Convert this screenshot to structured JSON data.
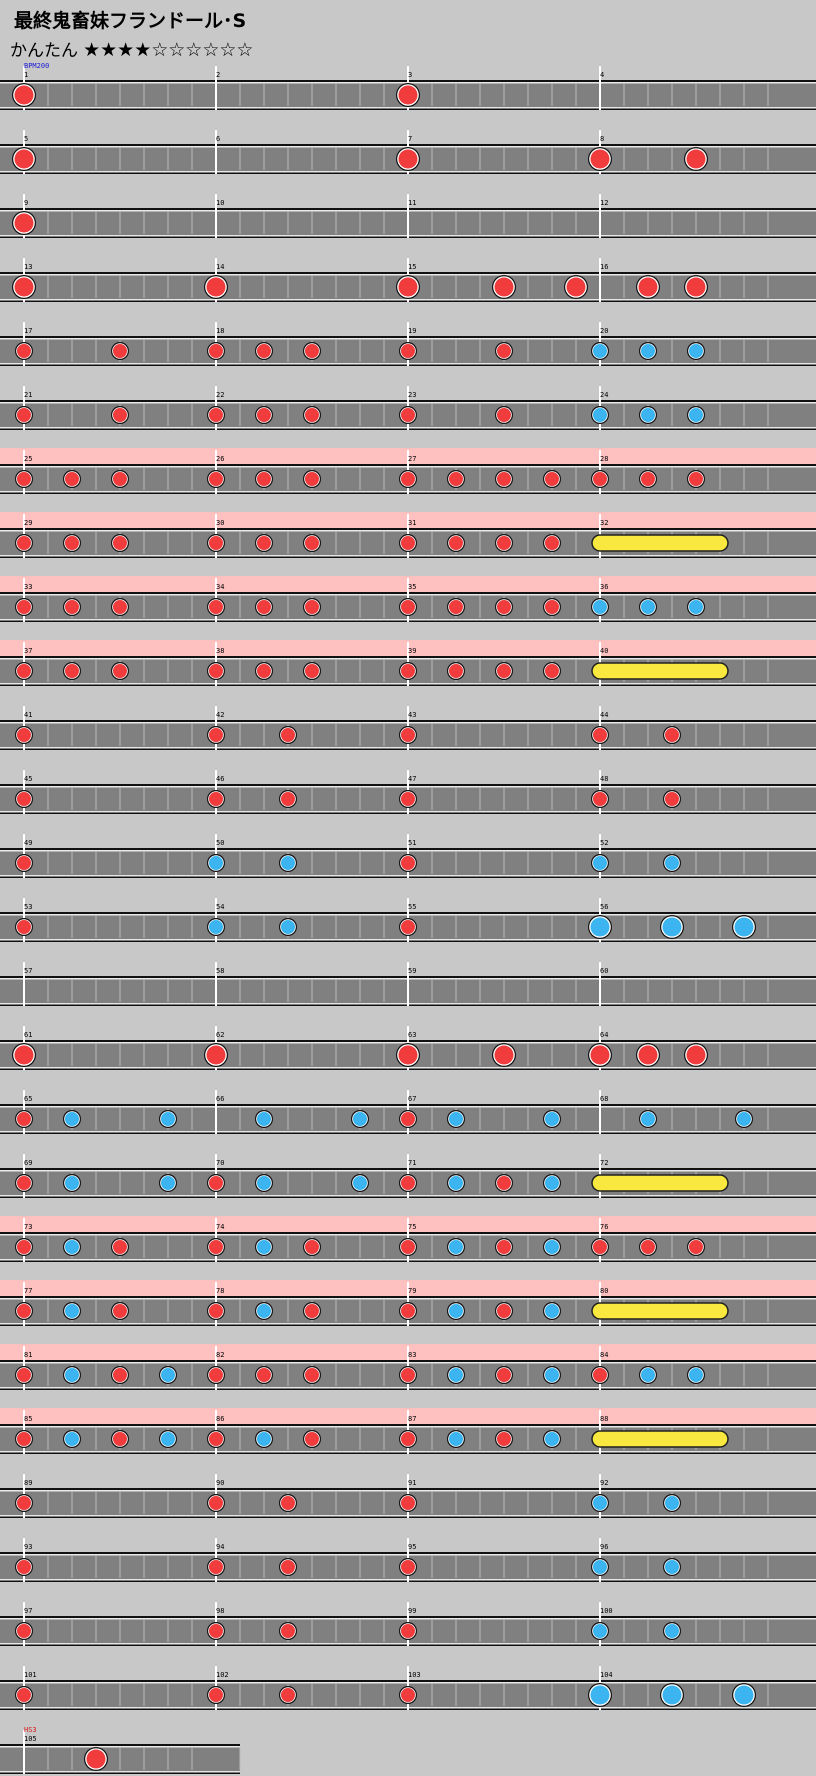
{
  "header": {
    "title": "最終鬼畜妹フランドール･S",
    "difficulty_label": "かんたん",
    "stars": "★★★★☆☆☆☆☆☆",
    "stars_filled": 4,
    "stars_total": 10
  },
  "colors": {
    "background": "#c8c8c8",
    "lane": "#808080",
    "kiai_band": "#ffc0c0",
    "don": "#f03c3c",
    "ka": "#3cb4f0",
    "roll": "#f8e840"
  },
  "chart_data": {
    "type": "taiko-note-chart",
    "measures_per_row": 4,
    "subdivisions_per_measure": 8,
    "markers": [
      {
        "measure": 1,
        "label": "BPM200"
      },
      {
        "measure": 105,
        "label": "HS3"
      }
    ],
    "kiai_measures": [
      25,
      26,
      27,
      28,
      29,
      30,
      31,
      32,
      33,
      34,
      35,
      36,
      37,
      38,
      39,
      40,
      73,
      74,
      75,
      76,
      77,
      78,
      79,
      80,
      81,
      82,
      83,
      84,
      85,
      86,
      87,
      88
    ],
    "rows": [
      {
        "measures": [
          1,
          2,
          3,
          4
        ],
        "notes": [
          [
            0,
            "D"
          ],
          [
            16,
            "D"
          ]
        ]
      },
      {
        "measures": [
          5,
          6,
          7,
          8
        ],
        "notes": [
          [
            0,
            "D"
          ],
          [
            16,
            "D"
          ],
          [
            24,
            "D"
          ],
          [
            28,
            "D"
          ]
        ]
      },
      {
        "measures": [
          9,
          10,
          11,
          12
        ],
        "notes": [
          [
            0,
            "D"
          ]
        ]
      },
      {
        "measures": [
          13,
          14,
          15,
          16
        ],
        "notes": [
          [
            0,
            "D"
          ],
          [
            8,
            "D"
          ],
          [
            16,
            "D"
          ],
          [
            20,
            "D"
          ],
          [
            23,
            "D"
          ],
          [
            26,
            "D"
          ],
          [
            28,
            "D"
          ]
        ]
      },
      {
        "measures": [
          17,
          18,
          19,
          20
        ],
        "notes": [
          [
            0,
            "d"
          ],
          [
            4,
            "d"
          ],
          [
            8,
            "d"
          ],
          [
            10,
            "d"
          ],
          [
            12,
            "d"
          ],
          [
            16,
            "d"
          ],
          [
            20,
            "d"
          ],
          [
            24,
            "k"
          ],
          [
            26,
            "k"
          ],
          [
            28,
            "k"
          ]
        ]
      },
      {
        "measures": [
          21,
          22,
          23,
          24
        ],
        "notes": [
          [
            0,
            "d"
          ],
          [
            4,
            "d"
          ],
          [
            8,
            "d"
          ],
          [
            10,
            "d"
          ],
          [
            12,
            "d"
          ],
          [
            16,
            "d"
          ],
          [
            20,
            "d"
          ],
          [
            24,
            "k"
          ],
          [
            26,
            "k"
          ],
          [
            28,
            "k"
          ]
        ]
      },
      {
        "measures": [
          25,
          26,
          27,
          28
        ],
        "notes": [
          [
            0,
            "d"
          ],
          [
            2,
            "d"
          ],
          [
            4,
            "d"
          ],
          [
            8,
            "d"
          ],
          [
            10,
            "d"
          ],
          [
            12,
            "d"
          ],
          [
            16,
            "d"
          ],
          [
            18,
            "d"
          ],
          [
            20,
            "d"
          ],
          [
            22,
            "d"
          ],
          [
            24,
            "d"
          ],
          [
            26,
            "d"
          ],
          [
            28,
            "d"
          ]
        ]
      },
      {
        "measures": [
          29,
          30,
          31,
          32
        ],
        "notes": [
          [
            0,
            "d"
          ],
          [
            2,
            "d"
          ],
          [
            4,
            "d"
          ],
          [
            8,
            "d"
          ],
          [
            10,
            "d"
          ],
          [
            12,
            "d"
          ],
          [
            16,
            "d"
          ],
          [
            18,
            "d"
          ],
          [
            20,
            "d"
          ],
          [
            22,
            "d"
          ]
        ],
        "rolls": [
          [
            24,
            29
          ]
        ]
      },
      {
        "measures": [
          33,
          34,
          35,
          36
        ],
        "notes": [
          [
            0,
            "d"
          ],
          [
            2,
            "d"
          ],
          [
            4,
            "d"
          ],
          [
            8,
            "d"
          ],
          [
            10,
            "d"
          ],
          [
            12,
            "d"
          ],
          [
            16,
            "d"
          ],
          [
            18,
            "d"
          ],
          [
            20,
            "d"
          ],
          [
            22,
            "d"
          ],
          [
            24,
            "k"
          ],
          [
            26,
            "k"
          ],
          [
            28,
            "k"
          ]
        ]
      },
      {
        "measures": [
          37,
          38,
          39,
          40
        ],
        "notes": [
          [
            0,
            "d"
          ],
          [
            2,
            "d"
          ],
          [
            4,
            "d"
          ],
          [
            8,
            "d"
          ],
          [
            10,
            "d"
          ],
          [
            12,
            "d"
          ],
          [
            16,
            "d"
          ],
          [
            18,
            "d"
          ],
          [
            20,
            "d"
          ],
          [
            22,
            "d"
          ]
        ],
        "rolls": [
          [
            24,
            29
          ]
        ]
      },
      {
        "measures": [
          41,
          42,
          43,
          44
        ],
        "notes": [
          [
            0,
            "d"
          ],
          [
            8,
            "d"
          ],
          [
            11,
            "d"
          ],
          [
            16,
            "d"
          ],
          [
            24,
            "d"
          ],
          [
            27,
            "d"
          ]
        ]
      },
      {
        "measures": [
          45,
          46,
          47,
          48
        ],
        "notes": [
          [
            0,
            "d"
          ],
          [
            8,
            "d"
          ],
          [
            11,
            "d"
          ],
          [
            16,
            "d"
          ],
          [
            24,
            "d"
          ],
          [
            27,
            "d"
          ]
        ]
      },
      {
        "measures": [
          49,
          50,
          51,
          52
        ],
        "notes": [
          [
            0,
            "d"
          ],
          [
            8,
            "k"
          ],
          [
            11,
            "k"
          ],
          [
            16,
            "d"
          ],
          [
            24,
            "k"
          ],
          [
            27,
            "k"
          ]
        ]
      },
      {
        "measures": [
          53,
          54,
          55,
          56
        ],
        "notes": [
          [
            0,
            "d"
          ],
          [
            8,
            "k"
          ],
          [
            11,
            "k"
          ],
          [
            16,
            "d"
          ],
          [
            24,
            "K"
          ],
          [
            27,
            "K"
          ],
          [
            30,
            "K"
          ]
        ]
      },
      {
        "measures": [
          57,
          58,
          59,
          60
        ],
        "notes": []
      },
      {
        "measures": [
          61,
          62,
          63,
          64
        ],
        "notes": [
          [
            0,
            "D"
          ],
          [
            8,
            "D"
          ],
          [
            16,
            "D"
          ],
          [
            20,
            "D"
          ],
          [
            24,
            "D"
          ],
          [
            26,
            "D"
          ],
          [
            28,
            "D"
          ]
        ]
      },
      {
        "measures": [
          65,
          66,
          67,
          68
        ],
        "notes": [
          [
            0,
            "d"
          ],
          [
            2,
            "k"
          ],
          [
            6,
            "k"
          ],
          [
            10,
            "k"
          ],
          [
            14,
            "k"
          ],
          [
            16,
            "d"
          ],
          [
            18,
            "k"
          ],
          [
            22,
            "k"
          ],
          [
            26,
            "k"
          ],
          [
            30,
            "k"
          ]
        ]
      },
      {
        "measures": [
          69,
          70,
          71,
          72
        ],
        "notes": [
          [
            0,
            "d"
          ],
          [
            2,
            "k"
          ],
          [
            6,
            "k"
          ],
          [
            8,
            "d"
          ],
          [
            10,
            "k"
          ],
          [
            14,
            "k"
          ],
          [
            16,
            "d"
          ],
          [
            18,
            "k"
          ],
          [
            20,
            "d"
          ],
          [
            22,
            "k"
          ]
        ],
        "rolls": [
          [
            24,
            29
          ]
        ]
      },
      {
        "measures": [
          73,
          74,
          75,
          76
        ],
        "notes": [
          [
            0,
            "d"
          ],
          [
            2,
            "k"
          ],
          [
            4,
            "d"
          ],
          [
            8,
            "d"
          ],
          [
            10,
            "k"
          ],
          [
            12,
            "d"
          ],
          [
            16,
            "d"
          ],
          [
            18,
            "k"
          ],
          [
            20,
            "d"
          ],
          [
            22,
            "k"
          ],
          [
            24,
            "d"
          ],
          [
            26,
            "d"
          ],
          [
            28,
            "d"
          ]
        ]
      },
      {
        "measures": [
          77,
          78,
          79,
          80
        ],
        "notes": [
          [
            0,
            "d"
          ],
          [
            2,
            "k"
          ],
          [
            4,
            "d"
          ],
          [
            8,
            "d"
          ],
          [
            10,
            "k"
          ],
          [
            12,
            "d"
          ],
          [
            16,
            "d"
          ],
          [
            18,
            "k"
          ],
          [
            20,
            "d"
          ],
          [
            22,
            "k"
          ]
        ],
        "rolls": [
          [
            24,
            29
          ]
        ]
      },
      {
        "measures": [
          81,
          82,
          83,
          84
        ],
        "notes": [
          [
            0,
            "d"
          ],
          [
            2,
            "k"
          ],
          [
            4,
            "d"
          ],
          [
            6,
            "k"
          ],
          [
            8,
            "d"
          ],
          [
            10,
            "d"
          ],
          [
            12,
            "d"
          ],
          [
            16,
            "d"
          ],
          [
            18,
            "k"
          ],
          [
            20,
            "d"
          ],
          [
            22,
            "k"
          ],
          [
            24,
            "d"
          ],
          [
            26,
            "k"
          ],
          [
            28,
            "k"
          ]
        ]
      },
      {
        "measures": [
          85,
          86,
          87,
          88
        ],
        "notes": [
          [
            0,
            "d"
          ],
          [
            2,
            "k"
          ],
          [
            4,
            "d"
          ],
          [
            6,
            "k"
          ],
          [
            8,
            "d"
          ],
          [
            10,
            "k"
          ],
          [
            12,
            "d"
          ],
          [
            16,
            "d"
          ],
          [
            18,
            "k"
          ],
          [
            20,
            "d"
          ],
          [
            22,
            "k"
          ]
        ],
        "rolls": [
          [
            24,
            29
          ]
        ]
      },
      {
        "measures": [
          89,
          90,
          91,
          92
        ],
        "notes": [
          [
            0,
            "d"
          ],
          [
            8,
            "d"
          ],
          [
            11,
            "d"
          ],
          [
            16,
            "d"
          ],
          [
            24,
            "k"
          ],
          [
            27,
            "k"
          ]
        ]
      },
      {
        "measures": [
          93,
          94,
          95,
          96
        ],
        "notes": [
          [
            0,
            "d"
          ],
          [
            8,
            "d"
          ],
          [
            11,
            "d"
          ],
          [
            16,
            "d"
          ],
          [
            24,
            "k"
          ],
          [
            27,
            "k"
          ]
        ]
      },
      {
        "measures": [
          97,
          98,
          99,
          100
        ],
        "notes": [
          [
            0,
            "d"
          ],
          [
            8,
            "d"
          ],
          [
            11,
            "d"
          ],
          [
            16,
            "d"
          ],
          [
            24,
            "k"
          ],
          [
            27,
            "k"
          ]
        ]
      },
      {
        "measures": [
          101,
          102,
          103,
          104
        ],
        "notes": [
          [
            0,
            "d"
          ],
          [
            8,
            "d"
          ],
          [
            11,
            "d"
          ],
          [
            16,
            "d"
          ],
          [
            24,
            "K"
          ],
          [
            27,
            "K"
          ],
          [
            30,
            "K"
          ]
        ]
      },
      {
        "measures": [
          105
        ],
        "notes": [
          [
            3,
            "D"
          ]
        ]
      }
    ]
  }
}
